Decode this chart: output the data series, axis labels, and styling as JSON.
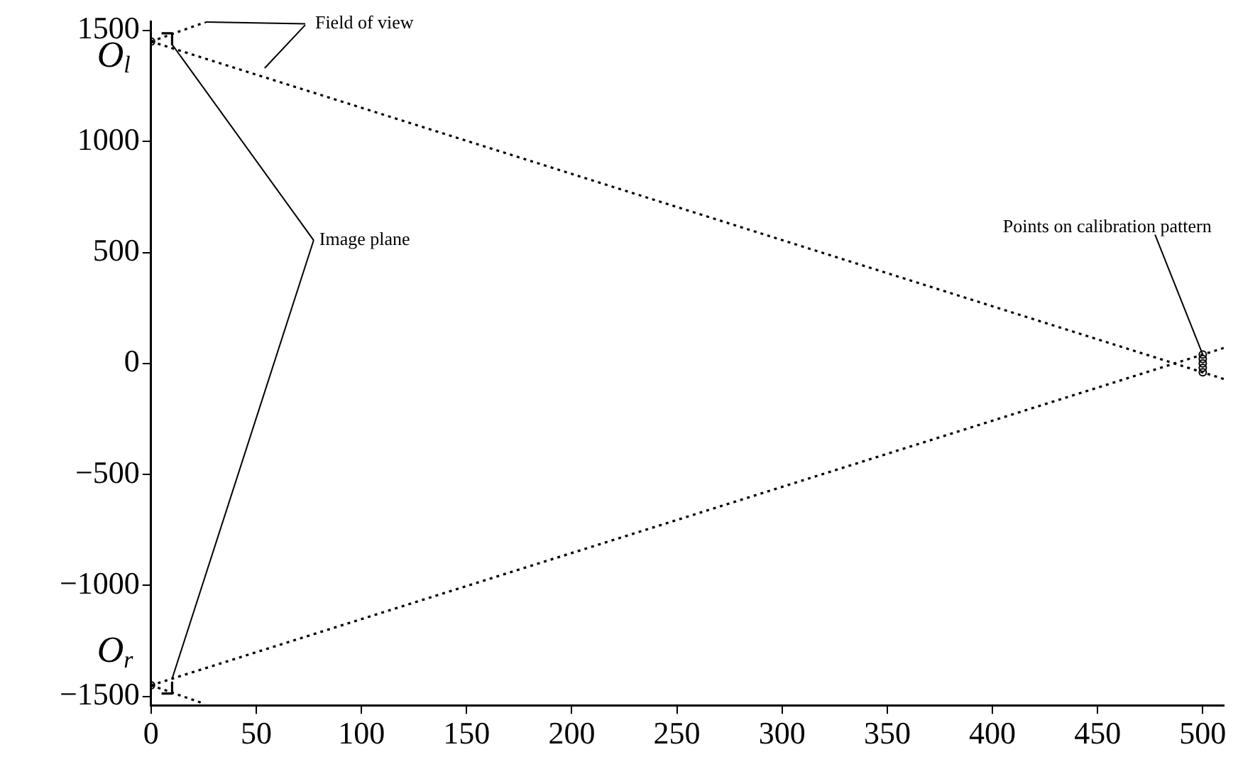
{
  "chart_data": {
    "type": "line",
    "xlim": [
      0,
      510
    ],
    "ylim": [
      -1540,
      1540
    ],
    "xticks": [
      0,
      50,
      100,
      150,
      200,
      250,
      300,
      350,
      400,
      450,
      500
    ],
    "yticks": [
      {
        "value": -1500,
        "label": "−1500"
      },
      {
        "value": -1000,
        "label": "−1000"
      },
      {
        "value": -500,
        "label": "−500"
      },
      0,
      500,
      1000,
      1500
    ],
    "grid": false,
    "legend": false,
    "marker": "none",
    "series": [
      {
        "type": "line",
        "line_style": "dotted",
        "color": "#000000",
        "x": [
          0,
          26
        ],
        "values": [
          1450,
          1538
        ]
      },
      {
        "type": "line",
        "line_style": "dotted",
        "color": "#000000",
        "x": [
          0,
          510
        ],
        "values": [
          1450,
          -70
        ]
      },
      {
        "type": "line",
        "line_style": "dotted",
        "color": "#000000",
        "x": [
          0,
          510
        ],
        "values": [
          -1450,
          70
        ]
      },
      {
        "type": "line",
        "line_style": "dotted",
        "color": "#000000",
        "x": [
          0,
          25
        ],
        "values": [
          -1450,
          -1532
        ]
      },
      {
        "type": "line",
        "line_style": "solid",
        "color": "#000000",
        "x": [
          5,
          10,
          10
        ],
        "values": [
          1487,
          1487,
          1437
        ]
      },
      {
        "type": "line",
        "line_style": "solid",
        "color": "#000000",
        "x": [
          10,
          10,
          5
        ],
        "values": [
          -1437,
          -1487,
          -1487
        ]
      },
      {
        "type": "scatter",
        "marker": "circle",
        "color": "#000000",
        "x": [
          0,
          0
        ],
        "values": [
          1450,
          -1450
        ]
      },
      {
        "type": "scatter",
        "marker": "circle",
        "color": "#000000",
        "x": [
          500,
          500,
          500,
          500,
          500
        ],
        "values": [
          40,
          20,
          0,
          -20,
          -40
        ]
      }
    ],
    "annotations": [
      {
        "text": "Field of view",
        "x": 26,
        "y": 1538
      },
      {
        "text": "Image plane",
        "x": 10,
        "y": 1437
      },
      {
        "text": "Points on calibration pattern",
        "x": 500,
        "y": 40
      },
      "O$_{l}$",
      "O$_{r}$"
    ]
  }
}
